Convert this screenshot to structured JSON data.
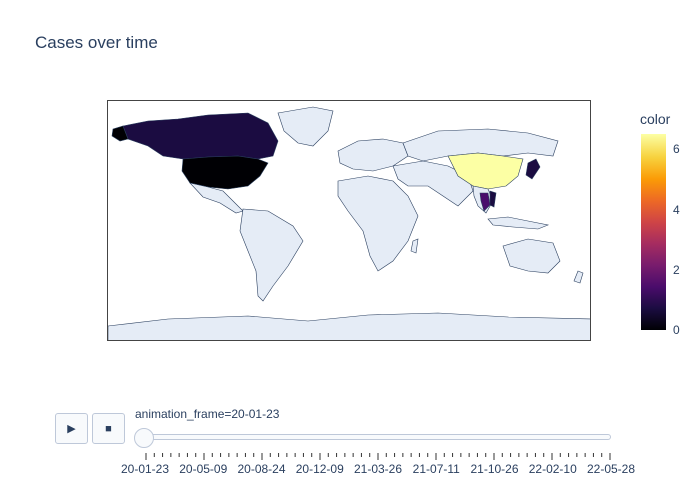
{
  "title": "Cases over time",
  "colorbar": {
    "title": "color",
    "ticks": [
      "0",
      "2",
      "4",
      "6"
    ],
    "range": [
      0,
      6.5
    ]
  },
  "slider": {
    "current_label": "animation_frame=20-01-23",
    "steps": [
      "20-01-23",
      "20-05-09",
      "20-08-24",
      "20-12-09",
      "21-03-26",
      "21-07-11",
      "21-10-26",
      "22-02-10",
      "22-05-28"
    ],
    "current_index": 0
  },
  "controls": {
    "play_glyph": "▶",
    "stop_glyph": "■"
  },
  "map": {
    "land_color": "#e5ecf6",
    "border_color": "#2a3f5f",
    "highlighted_countries": [
      {
        "name": "China",
        "value": 6.5,
        "color": "#fcffa4"
      },
      {
        "name": "United States",
        "value": 0,
        "color": "#000004"
      },
      {
        "name": "Canada",
        "value": 1,
        "color": "#1b0c41"
      },
      {
        "name": "Japan",
        "value": 1,
        "color": "#1b0c41"
      },
      {
        "name": "Thailand",
        "value": 2,
        "color": "#4a0c6b"
      },
      {
        "name": "Vietnam",
        "value": 1,
        "color": "#1b0c41"
      }
    ]
  }
}
